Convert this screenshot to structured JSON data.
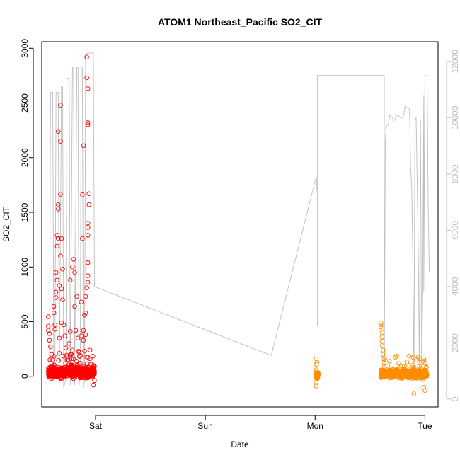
{
  "chart_data": {
    "type": "scatter",
    "title": "ATOM1 Northeast_Pacific SO2_CIT",
    "xlabel": "Date",
    "ylabel": "SO2_CIT",
    "x_ticks": [
      "Sat",
      "Sun",
      "Mon",
      "Tue"
    ],
    "x_tick_days": [
      1,
      2,
      3,
      4
    ],
    "xlim_days": [
      0.51,
      4.12
    ],
    "y_ticks": [
      0,
      500,
      1000,
      1500,
      2000,
      2500,
      3000
    ],
    "ylim": [
      -280,
      3060
    ],
    "y2_ticks": [
      0,
      2000,
      4000,
      6000,
      8000,
      10000,
      12000
    ],
    "y2lim": [
      -280,
      12700
    ],
    "grid": false,
    "legend": "none",
    "colors": {
      "series1": "#ff0000",
      "series2": "#ff8c00",
      "altitude": "#bebebe",
      "axis": "#000000",
      "axis_right": "#bebebe"
    },
    "series": [
      {
        "color": "series1",
        "x_range_days": [
          0.57,
          0.99
        ],
        "base_points": [
          [
            0.57,
            545
          ],
          [
            0.57,
            460
          ],
          [
            0.57,
            420
          ],
          [
            0.58,
            390
          ],
          [
            0.58,
            330
          ],
          [
            0.59,
            270
          ],
          [
            0.6,
            200
          ],
          [
            0.61,
            150
          ],
          [
            0.62,
            580
          ],
          [
            0.62,
            640
          ],
          [
            0.63,
            430
          ],
          [
            0.63,
            470
          ],
          [
            0.64,
            770
          ],
          [
            0.64,
            720
          ],
          [
            0.64,
            950
          ],
          [
            0.65,
            880
          ],
          [
            0.65,
            1290
          ],
          [
            0.65,
            1190
          ],
          [
            0.66,
            1260
          ],
          [
            0.66,
            1570
          ],
          [
            0.66,
            1530
          ],
          [
            0.66,
            2240
          ],
          [
            0.67,
            830
          ],
          [
            0.67,
            350
          ],
          [
            0.67,
            210
          ],
          [
            0.68,
            1100
          ],
          [
            0.68,
            2150
          ],
          [
            0.68,
            2480
          ],
          [
            0.68,
            1665
          ],
          [
            0.69,
            1260
          ],
          [
            0.69,
            800
          ],
          [
            0.69,
            490
          ],
          [
            0.7,
            980
          ],
          [
            0.7,
            700
          ],
          [
            0.71,
            470
          ],
          [
            0.72,
            370
          ],
          [
            0.73,
            260
          ],
          [
            0.74,
            150
          ],
          [
            0.75,
            150
          ],
          [
            0.76,
            300
          ],
          [
            0.77,
            880
          ],
          [
            0.77,
            410
          ],
          [
            0.78,
            200
          ],
          [
            0.78,
            100
          ],
          [
            0.79,
            240
          ],
          [
            0.79,
            1000
          ],
          [
            0.8,
            1070
          ],
          [
            0.81,
            640
          ],
          [
            0.81,
            950
          ],
          [
            0.82,
            420
          ],
          [
            0.83,
            730
          ],
          [
            0.84,
            350
          ],
          [
            0.85,
            220
          ],
          [
            0.86,
            120
          ],
          [
            0.87,
            370
          ],
          [
            0.87,
            680
          ],
          [
            0.88,
            1260
          ],
          [
            0.88,
            1660
          ],
          [
            0.89,
            330
          ],
          [
            0.89,
            420
          ],
          [
            0.89,
            2110
          ],
          [
            0.9,
            560
          ],
          [
            0.9,
            230
          ],
          [
            0.91,
            580
          ],
          [
            0.91,
            730
          ],
          [
            0.91,
            380
          ],
          [
            0.92,
            810
          ],
          [
            0.92,
            2920
          ],
          [
            0.92,
            2730
          ],
          [
            0.93,
            1400
          ],
          [
            0.93,
            1360
          ],
          [
            0.93,
            1290
          ],
          [
            0.93,
            1040
          ],
          [
            0.93,
            920
          ],
          [
            0.93,
            860
          ],
          [
            0.93,
            2630
          ],
          [
            0.93,
            2320
          ],
          [
            0.93,
            2300
          ],
          [
            0.94,
            1670
          ],
          [
            0.94,
            1570
          ],
          [
            0.95,
            240
          ],
          [
            0.95,
            160
          ],
          [
            0.96,
            110
          ],
          [
            0.98,
            60
          ],
          [
            0.98,
            -80
          ],
          [
            0.99,
            30
          ],
          [
            0.99,
            90
          ],
          [
            0.99,
            -40
          ]
        ],
        "cluster": {
          "n": 720,
          "y_center": 40,
          "y_spread": 70
        }
      },
      {
        "color": "series2",
        "x_range_days": [
          3.01,
          4.02
        ],
        "base_points": [
          [
            3.01,
            160
          ],
          [
            3.01,
            110
          ],
          [
            3.01,
            60
          ],
          [
            3.01,
            20
          ],
          [
            3.01,
            -50
          ],
          [
            3.01,
            -90
          ],
          [
            3.6,
            490
          ],
          [
            3.6,
            470
          ],
          [
            3.6,
            450
          ],
          [
            3.61,
            400
          ],
          [
            3.61,
            360
          ],
          [
            3.61,
            320
          ],
          [
            3.61,
            280
          ],
          [
            3.62,
            240
          ],
          [
            3.62,
            200
          ],
          [
            3.62,
            160
          ],
          [
            3.63,
            120
          ],
          [
            3.63,
            90
          ],
          [
            3.85,
            100
          ],
          [
            3.89,
            75
          ],
          [
            3.9,
            -160
          ],
          [
            3.92,
            150
          ],
          [
            3.95,
            90
          ],
          [
            3.99,
            140
          ],
          [
            3.99,
            160
          ],
          [
            3.99,
            -100
          ],
          [
            4.0,
            120
          ],
          [
            4.0,
            -130
          ]
        ],
        "clusters": [
          {
            "x_range_days": [
              3.01,
              3.03
            ],
            "n": 45,
            "y_center": 10,
            "y_spread": 55
          },
          {
            "x_range_days": [
              3.6,
              4.02
            ],
            "n": 560,
            "y_center": 25,
            "y_spread": 55
          }
        ]
      }
    ],
    "altitude_line": {
      "color": "altitude",
      "axis": "right",
      "path_days_y2": [
        [
          0.58,
          800
        ],
        [
          0.59,
          10900
        ],
        [
          0.61,
          10900
        ],
        [
          0.62,
          600
        ],
        [
          0.63,
          900
        ],
        [
          0.64,
          10900
        ],
        [
          0.66,
          10900
        ],
        [
          0.67,
          500
        ],
        [
          0.69,
          11100
        ],
        [
          0.7,
          11100
        ],
        [
          0.71,
          400
        ],
        [
          0.73,
          700
        ],
        [
          0.74,
          11400
        ],
        [
          0.76,
          11400
        ],
        [
          0.77,
          500
        ],
        [
          0.79,
          11800
        ],
        [
          0.8,
          11800
        ],
        [
          0.81,
          500
        ],
        [
          0.83,
          11800
        ],
        [
          0.84,
          11800
        ],
        [
          0.85,
          500
        ],
        [
          0.86,
          800
        ],
        [
          0.87,
          11800
        ],
        [
          0.88,
          11800
        ],
        [
          0.89,
          400
        ],
        [
          0.9,
          700
        ],
        [
          0.91,
          12200
        ],
        [
          0.93,
          12300
        ],
        [
          0.96,
          12300
        ],
        [
          0.98,
          12300
        ],
        [
          0.99,
          4000
        ],
        [
          2.6,
          1550
        ],
        [
          3.01,
          7900
        ],
        [
          3.02,
          7300
        ],
        [
          3.02,
          2600
        ],
        [
          3.02,
          11500
        ],
        [
          3.63,
          11500
        ],
        [
          3.63,
          700
        ],
        [
          3.64,
          9200
        ],
        [
          3.65,
          9700
        ],
        [
          3.67,
          9800
        ],
        [
          3.68,
          10100
        ],
        [
          3.7,
          10000
        ],
        [
          3.72,
          9900
        ],
        [
          3.75,
          10100
        ],
        [
          3.78,
          10000
        ],
        [
          3.8,
          10000
        ],
        [
          3.82,
          10400
        ],
        [
          3.86,
          10300
        ],
        [
          3.87,
          8300
        ],
        [
          3.88,
          7500
        ],
        [
          3.89,
          5100
        ],
        [
          3.9,
          900
        ],
        [
          3.9,
          800
        ],
        [
          3.91,
          9900
        ],
        [
          3.92,
          10000
        ],
        [
          3.94,
          5200
        ],
        [
          3.95,
          1000
        ],
        [
          3.96,
          9900
        ],
        [
          3.97,
          1200
        ],
        [
          3.98,
          3600
        ],
        [
          3.99,
          10800
        ],
        [
          3.99,
          3800
        ],
        [
          4.0,
          11500
        ],
        [
          4.02,
          11500
        ],
        [
          4.03,
          7000
        ],
        [
          4.04,
          4500
        ]
      ]
    }
  }
}
